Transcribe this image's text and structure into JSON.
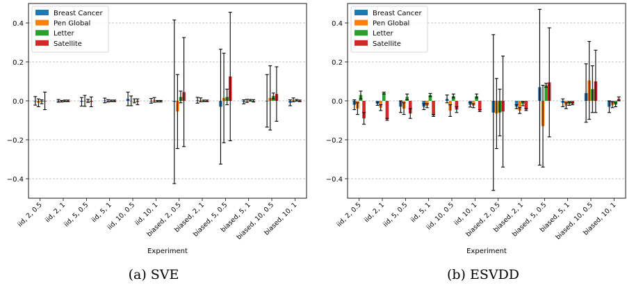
{
  "chart_data": [
    {
      "type": "bar",
      "caption": "(a) SVE",
      "xlabel": "Experiment",
      "ylabel": "",
      "ylim": [
        -0.5,
        0.5
      ],
      "yticks": [
        -0.4,
        -0.2,
        0.0,
        0.2,
        0.4
      ],
      "ytick_labels": [
        "−0.4",
        "−0.2",
        "0.0",
        "0.2",
        "0.4"
      ],
      "grid": "horizontal dashed",
      "legend_position": "top-left",
      "categories": [
        "iid, 2, 0.5",
        "iid, 2, 1",
        "iid, 5, 0.5",
        "iid, 5, 1",
        "iid, 10, 0.5",
        "iid, 10, 1",
        "biased, 2, 0.5",
        "biased, 2, 1",
        "biased, 5, 0.5",
        "biased, 5, 1",
        "biased, 10, 0.5",
        "biased, 10, 1"
      ],
      "series": [
        {
          "name": "Breast Cancer",
          "color": "#1f77b4",
          "values": [
            0.0,
            0.0,
            -0.005,
            0.002,
            0.01,
            0.0,
            -0.005,
            0.003,
            -0.03,
            -0.005,
            0.0,
            -0.01
          ],
          "errors": [
            0.022,
            0.007,
            0.022,
            0.012,
            0.035,
            0.012,
            0.42,
            0.015,
            0.295,
            0.01,
            0.135,
            0.015
          ]
        },
        {
          "name": "Pen Global",
          "color": "#ff7f0e",
          "values": [
            -0.01,
            -0.002,
            0.0,
            0.0,
            0.0,
            0.005,
            -0.055,
            0.005,
            0.015,
            0.0,
            0.015,
            0.005
          ],
          "errors": [
            0.02,
            0.004,
            0.028,
            0.006,
            0.025,
            0.012,
            0.19,
            0.01,
            0.23,
            0.008,
            0.165,
            0.01
          ]
        },
        {
          "name": "Letter",
          "color": "#2ca02c",
          "values": [
            -0.005,
            0.0,
            0.0,
            0.0,
            0.0,
            -0.002,
            0.02,
            0.0,
            0.02,
            0.003,
            0.025,
            0.003
          ],
          "errors": [
            0.01,
            0.004,
            0.008,
            0.004,
            0.01,
            0.004,
            0.03,
            0.004,
            0.04,
            0.004,
            0.015,
            0.004
          ]
        },
        {
          "name": "Satellite",
          "color": "#d62728",
          "values": [
            0.0,
            0.0,
            -0.005,
            0.0,
            -0.005,
            -0.002,
            0.045,
            0.0,
            0.125,
            0.0,
            0.035,
            0.0
          ],
          "errors": [
            0.045,
            0.004,
            0.025,
            0.004,
            0.015,
            0.004,
            0.28,
            0.004,
            0.33,
            0.006,
            0.14,
            0.004
          ]
        }
      ]
    },
    {
      "type": "bar",
      "caption": "(b) ESVDD",
      "xlabel": "Experiment",
      "ylabel": "",
      "ylim": [
        -0.5,
        0.5
      ],
      "yticks": [
        -0.4,
        -0.2,
        0.0,
        0.2,
        0.4
      ],
      "ytick_labels": [
        "−0.4",
        "−0.2",
        "0.0",
        "0.2",
        "0.4"
      ],
      "grid": "horizontal dashed",
      "legend_position": "top-left",
      "categories": [
        "iid, 2, 0.5",
        "iid, 2, 1",
        "iid, 5, 0.5",
        "iid, 5, 1",
        "iid, 10, 0.5",
        "iid, 10, 1",
        "biased, 2, 0.5",
        "biased, 2, 1",
        "biased, 5, 0.5",
        "biased, 5, 1",
        "biased, 10, 0.5",
        "biased, 10, 1"
      ],
      "series": [
        {
          "name": "Breast Cancer",
          "color": "#1f77b4",
          "values": [
            -0.02,
            -0.015,
            -0.03,
            -0.03,
            0.01,
            -0.02,
            -0.06,
            -0.03,
            0.07,
            -0.01,
            0.04,
            -0.03
          ],
          "errors": [
            0.025,
            0.008,
            0.03,
            0.015,
            0.02,
            0.012,
            0.4,
            0.01,
            0.4,
            0.02,
            0.15,
            0.03
          ]
        },
        {
          "name": "Pen Global",
          "color": "#ff7f0e",
          "values": [
            -0.04,
            -0.035,
            -0.04,
            -0.025,
            -0.05,
            -0.025,
            -0.065,
            -0.05,
            -0.13,
            -0.025,
            0.105,
            -0.02
          ],
          "errors": [
            0.03,
            0.015,
            0.03,
            0.01,
            0.03,
            0.01,
            0.18,
            0.015,
            0.21,
            0.015,
            0.2,
            0.015
          ]
        },
        {
          "name": "Letter",
          "color": "#2ca02c",
          "values": [
            0.03,
            0.04,
            0.02,
            0.03,
            0.025,
            0.025,
            -0.06,
            -0.015,
            0.08,
            -0.015,
            0.06,
            -0.02
          ],
          "errors": [
            0.02,
            0.005,
            0.015,
            0.008,
            0.01,
            0.01,
            0.12,
            0.01,
            0.01,
            0.008,
            0.12,
            0.01
          ]
        },
        {
          "name": "Satellite",
          "color": "#d62728",
          "values": [
            -0.09,
            -0.095,
            -0.065,
            -0.075,
            -0.045,
            -0.05,
            -0.055,
            -0.045,
            0.095,
            -0.015,
            0.1,
            0.01
          ],
          "errors": [
            0.03,
            0.005,
            0.025,
            0.005,
            0.015,
            0.005,
            0.285,
            0.005,
            0.28,
            0.005,
            0.16,
            0.01
          ]
        }
      ]
    }
  ]
}
